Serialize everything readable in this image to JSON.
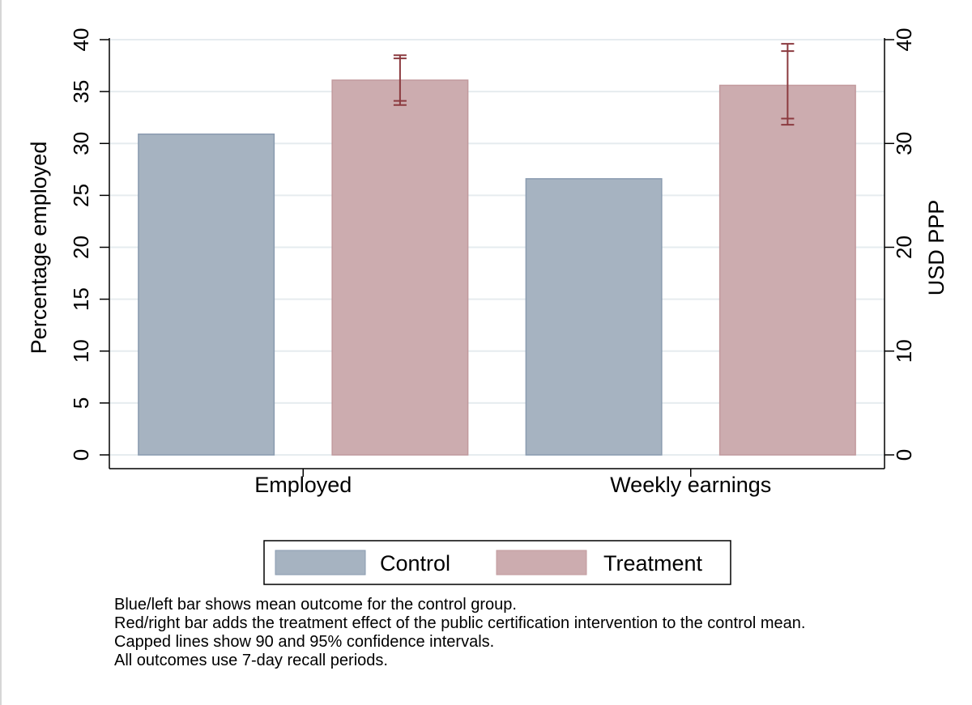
{
  "chart_data": {
    "type": "bar",
    "categories": [
      "Employed",
      "Weekly earnings"
    ],
    "series": [
      {
        "name": "Control",
        "color": "#a6b3c1",
        "edge": "#8a9bb0",
        "values": [
          30.9,
          26.6
        ]
      },
      {
        "name": "Treatment",
        "color": "#ccacaf",
        "edge": "#c29a9d",
        "values": [
          36.1,
          35.6
        ]
      }
    ],
    "confidence_intervals": {
      "series": "Treatment",
      "ci90": [
        [
          34.1,
          38.2
        ],
        [
          32.4,
          38.9
        ]
      ],
      "ci95": [
        [
          33.7,
          38.5
        ],
        [
          31.8,
          39.6
        ]
      ],
      "color": "#8b3a3f"
    },
    "ylabel": "Percentage employed",
    "ylim": [
      0,
      40
    ],
    "yticks": [
      "0",
      "5",
      "10",
      "15",
      "20",
      "25",
      "30",
      "35",
      "40"
    ],
    "y2label": "USD PPP",
    "y2lim": [
      0,
      40
    ],
    "y2ticks": [
      "0",
      "10",
      "20",
      "30",
      "40"
    ],
    "grid": true,
    "legend_position": "bottom"
  },
  "notes": [
    "Blue/left bar shows mean outcome for the control group.",
    "Red/right bar adds the treatment effect of the public certification intervention to the control mean.",
    "Capped lines show 90 and 95% confidence intervals.",
    "All outcomes use 7-day recall periods."
  ]
}
